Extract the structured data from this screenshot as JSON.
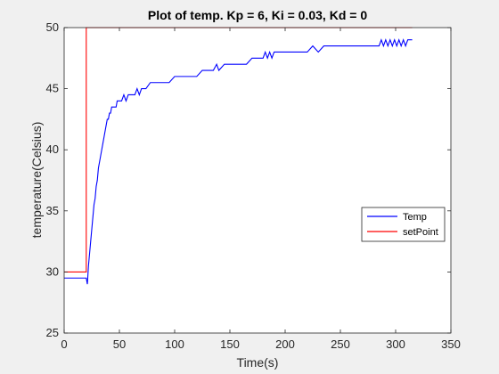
{
  "chart_data": {
    "type": "line",
    "title": "Plot of temp. Kp = 6, Ki = 0.03, Kd = 0",
    "xlabel": "Time(s)",
    "ylabel": "temperature(Celsius)",
    "xlim": [
      0,
      350
    ],
    "ylim": [
      25,
      50
    ],
    "xticks": [
      0,
      50,
      100,
      150,
      200,
      250,
      300,
      350
    ],
    "yticks": [
      25,
      30,
      35,
      40,
      45,
      50
    ],
    "grid": false,
    "legend_position": "right",
    "series": [
      {
        "name": "Temp",
        "color": "#0000ff",
        "x": [
          0,
          20,
          21,
          22,
          23,
          24,
          25,
          26,
          27,
          28,
          29,
          30,
          31,
          32,
          33,
          34,
          35,
          36,
          37,
          38,
          39,
          40,
          41,
          42,
          43,
          44,
          45,
          46,
          47,
          48,
          50,
          52,
          54,
          56,
          58,
          60,
          62,
          64,
          66,
          68,
          70,
          74,
          78,
          82,
          86,
          90,
          95,
          100,
          105,
          110,
          115,
          120,
          125,
          130,
          135,
          138,
          140,
          145,
          150,
          155,
          160,
          165,
          170,
          175,
          180,
          182,
          184,
          186,
          188,
          190,
          195,
          200,
          205,
          210,
          215,
          220,
          225,
          230,
          235,
          240,
          245,
          250,
          255,
          260,
          265,
          270,
          275,
          280,
          285,
          287,
          289,
          291,
          293,
          295,
          297,
          299,
          301,
          303,
          305,
          307,
          309,
          311,
          313,
          315
        ],
        "y": [
          29.5,
          29.5,
          29.0,
          30.5,
          31.5,
          32.5,
          33.5,
          34.5,
          35.5,
          36.0,
          37.0,
          37.5,
          38.5,
          39.0,
          39.5,
          40.0,
          40.5,
          41.0,
          41.5,
          42.0,
          42.5,
          42.5,
          43.0,
          43.0,
          43.5,
          43.5,
          43.5,
          43.5,
          43.5,
          44.0,
          44.0,
          44.0,
          44.5,
          44.0,
          44.5,
          44.5,
          44.5,
          44.5,
          45.0,
          44.5,
          45.0,
          45.0,
          45.5,
          45.5,
          45.5,
          45.5,
          45.5,
          46.0,
          46.0,
          46.0,
          46.0,
          46.0,
          46.5,
          46.5,
          46.5,
          47.0,
          46.5,
          47.0,
          47.0,
          47.0,
          47.0,
          47.0,
          47.5,
          47.5,
          47.5,
          48.0,
          47.5,
          48.0,
          47.5,
          48.0,
          48.0,
          48.0,
          48.0,
          48.0,
          48.0,
          48.0,
          48.5,
          48.0,
          48.5,
          48.5,
          48.5,
          48.5,
          48.5,
          48.5,
          48.5,
          48.5,
          48.5,
          48.5,
          48.5,
          49.0,
          48.5,
          49.0,
          48.5,
          49.0,
          48.5,
          49.0,
          48.5,
          49.0,
          48.5,
          49.0,
          48.5,
          49.0,
          49.0,
          49.0
        ]
      },
      {
        "name": "setPoint",
        "color": "#ff0000",
        "x": [
          0,
          20,
          20,
          315
        ],
        "y": [
          30,
          30,
          50,
          50
        ]
      }
    ]
  }
}
